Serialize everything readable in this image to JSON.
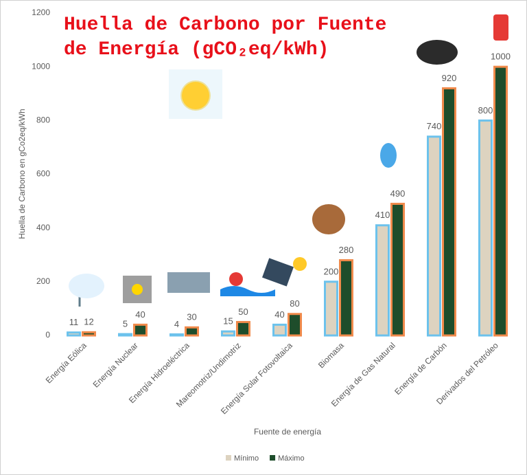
{
  "chart_data": {
    "type": "bar",
    "title": "Huella de Carbono por Fuente de Energía (gCO₂eq/kWh)",
    "y_label": "Huella de Carbono en gCo2eq/kWh",
    "x_label": "Fuente de energía",
    "categories": [
      "Energía Eólica",
      "Energía Nuclear",
      "Energía Hidroeléctrica",
      "Mareomotriz/Undimotriz",
      "Energía Solar Fotovoltaica",
      "Biomasa",
      "Energía de Gas Natural",
      "Energía de Carbón",
      "Derivados del Petróleo"
    ],
    "series": [
      {
        "name": "Mínimo",
        "color": "#ddd3c0",
        "outline": "#6cc2ec",
        "values": [
          11,
          5,
          4,
          15,
          40,
          200,
          410,
          740,
          800
        ]
      },
      {
        "name": "Máximo",
        "color": "#1e4d2b",
        "outline": "#f08a4b",
        "values": [
          12,
          40,
          30,
          50,
          80,
          280,
          490,
          920,
          1000
        ]
      }
    ],
    "ylim": [
      0,
      1200
    ],
    "yticks": [
      0,
      200,
      400,
      600,
      800,
      1000,
      1200
    ],
    "grid": false,
    "legend": "bottom"
  }
}
